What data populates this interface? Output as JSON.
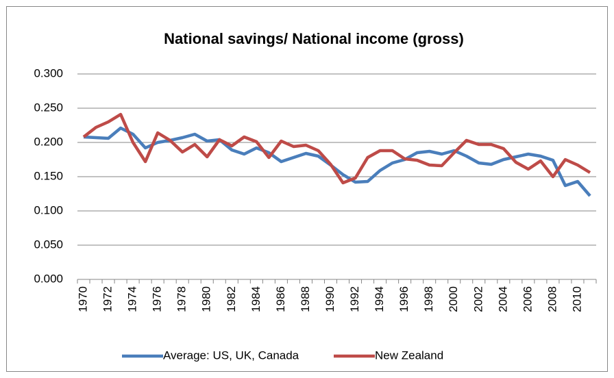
{
  "chart_data": {
    "type": "line",
    "title": "National savings/ National income  (gross)",
    "categories": [
      "1970",
      null,
      "1972",
      null,
      "1974",
      null,
      "1976",
      null,
      "1978",
      null,
      "1980",
      null,
      "1982",
      null,
      "1984",
      null,
      "1986",
      null,
      "1988",
      null,
      "1990",
      null,
      "1992",
      null,
      "1994",
      null,
      "1996",
      null,
      "1998",
      null,
      "2000",
      null,
      "2002",
      null,
      "2004",
      null,
      "2006",
      null,
      "2008",
      null,
      "2010",
      null
    ],
    "series": [
      {
        "name": "Average: US, UK, Canada",
        "color": "#4a7ebb",
        "values": [
          0.208,
          0.207,
          0.206,
          0.221,
          0.212,
          0.192,
          0.2,
          0.203,
          0.207,
          0.212,
          0.202,
          0.204,
          0.189,
          0.183,
          0.192,
          0.185,
          0.172,
          0.178,
          0.184,
          0.18,
          0.167,
          0.153,
          0.142,
          0.143,
          0.159,
          0.17,
          0.175,
          0.185,
          0.187,
          0.183,
          0.188,
          0.18,
          0.17,
          0.168,
          0.175,
          0.179,
          0.183,
          0.18,
          0.174,
          0.137,
          0.143,
          0.122
        ]
      },
      {
        "name": "New Zealand",
        "color": "#be4b48",
        "values": [
          0.208,
          0.222,
          0.23,
          0.241,
          0.2,
          0.172,
          0.214,
          0.203,
          0.186,
          0.197,
          0.179,
          0.204,
          0.195,
          0.208,
          0.201,
          0.178,
          0.202,
          0.194,
          0.196,
          0.188,
          0.168,
          0.141,
          0.148,
          0.178,
          0.188,
          0.188,
          0.176,
          0.174,
          0.167,
          0.166,
          0.185,
          0.203,
          0.197,
          0.197,
          0.191,
          0.171,
          0.161,
          0.173,
          0.15,
          0.175,
          0.167,
          0.156
        ]
      }
    ],
    "ylim": [
      0,
      0.3
    ],
    "yticks": [
      {
        "value": 0,
        "label": "0.000"
      },
      {
        "value": 0.05,
        "label": "0.050"
      },
      {
        "value": 0.1,
        "label": "0.100"
      },
      {
        "value": 0.15,
        "label": "0.150"
      },
      {
        "value": 0.2,
        "label": "0.200"
      },
      {
        "value": 0.25,
        "label": "0.250"
      },
      {
        "value": 0.3,
        "label": "0.300"
      }
    ],
    "grid": true,
    "legend": "bottom"
  }
}
